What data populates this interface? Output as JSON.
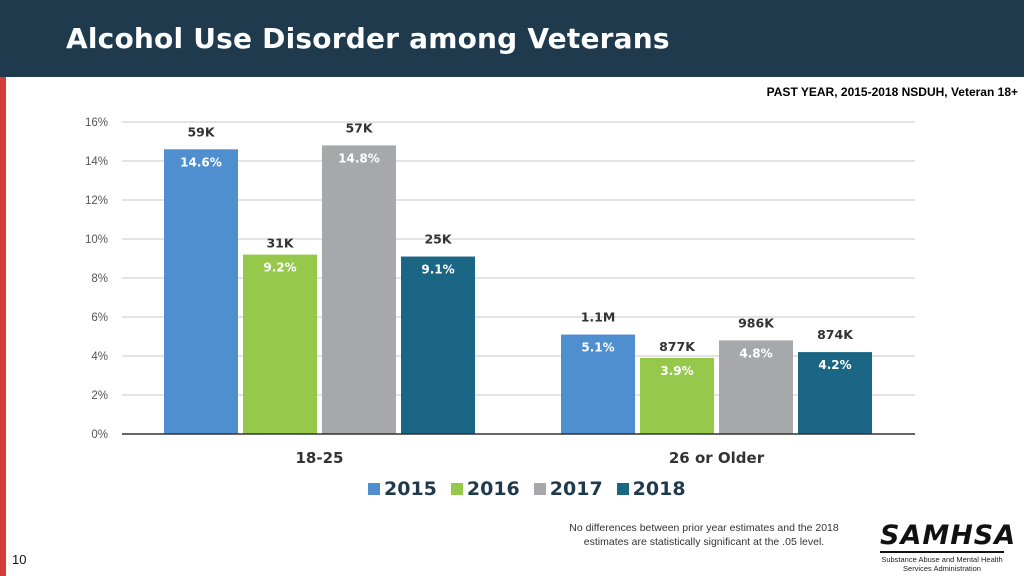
{
  "slide": {
    "title": "Alcohol Use Disorder among Veterans",
    "subtitle": "PAST YEAR, 2015-2018 NSDUH, Veteran 18+",
    "note": "No differences between prior year estimates and the 2018 estimates are statistically significant at the .05 level.",
    "logo_text": "SAMHSA",
    "logo_subtext": "Substance Abuse and Mental Health Services Administration",
    "page_number": "10"
  },
  "colors": {
    "2015": "#4f8fd0",
    "2016": "#96c94b",
    "2017": "#a6a8ab",
    "2018": "#1b6585",
    "header": "#1f3a4d",
    "accent_red": "#d63a3a"
  },
  "chart_data": {
    "type": "bar",
    "title": "Alcohol Use Disorder among Veterans",
    "categories": [
      "18-25",
      "26 or Older"
    ],
    "ylim": [
      0,
      16
    ],
    "yticks": [
      "0%",
      "2%",
      "4%",
      "6%",
      "8%",
      "10%",
      "12%",
      "14%",
      "16%"
    ],
    "ytick_values": [
      0,
      2,
      4,
      6,
      8,
      10,
      12,
      14,
      16
    ],
    "grid": true,
    "legend_position": "bottom",
    "series": [
      {
        "name": "2015",
        "values": [
          14.6,
          5.1
        ],
        "value_labels": [
          "14.6%",
          "5.1%"
        ],
        "count_labels": [
          "59K",
          "1.1M"
        ]
      },
      {
        "name": "2016",
        "values": [
          9.2,
          3.9
        ],
        "value_labels": [
          "9.2%",
          "3.9%"
        ],
        "count_labels": [
          "31K",
          "877K"
        ]
      },
      {
        "name": "2017",
        "values": [
          14.8,
          4.8
        ],
        "value_labels": [
          "14.8%",
          "4.8%"
        ],
        "count_labels": [
          "57K",
          "986K"
        ]
      },
      {
        "name": "2018",
        "values": [
          9.1,
          4.2
        ],
        "value_labels": [
          "9.1%",
          "4.2%"
        ],
        "count_labels": [
          "25K",
          "874K"
        ]
      }
    ]
  }
}
